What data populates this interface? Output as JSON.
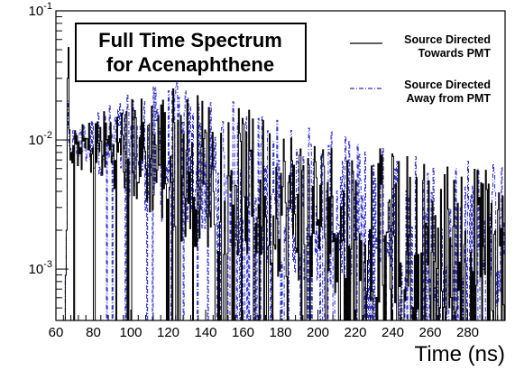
{
  "chart_data": {
    "type": "line",
    "title_lines": [
      "Full Time Spectrum",
      "for Acenaphthene"
    ],
    "xlabel": "Time (ns)",
    "ylabel": "",
    "xlim": [
      60,
      300
    ],
    "ylim": [
      0.0004,
      0.1
    ],
    "yscale": "log",
    "grid": false,
    "legend_position": "top-right",
    "x_ticks": [
      "60",
      "80",
      "100",
      "120",
      "140",
      "160",
      "180",
      "200",
      "220",
      "240",
      "260",
      "280"
    ],
    "y_ticks": [
      {
        "base": "10",
        "exp": "-1",
        "value": 0.1
      },
      {
        "base": "10",
        "exp": "-2",
        "value": 0.01
      },
      {
        "base": "10",
        "exp": "-3",
        "value": 0.001
      }
    ],
    "series": [
      {
        "name_lines": [
          "Source Directed",
          "Towards PMT"
        ],
        "color": "#000000",
        "style": "solid",
        "x": [
          64.5,
          65.5,
          66,
          66.5,
          67,
          67.5,
          68,
          70,
          75,
          80,
          85,
          90,
          100,
          110,
          120,
          130,
          140,
          150,
          160,
          170,
          180,
          190,
          200,
          210,
          220,
          230,
          240,
          250,
          260,
          270,
          280,
          290,
          300
        ],
        "y": [
          0.0004,
          0.002,
          0.03,
          0.052,
          0.012,
          0.007,
          0.008,
          0.0085,
          0.0088,
          0.009,
          0.0092,
          0.0091,
          0.0085,
          0.0078,
          0.0071,
          0.0063,
          0.0056,
          0.005,
          0.0044,
          0.0039,
          0.0035,
          0.0031,
          0.0028,
          0.0026,
          0.0024,
          0.0022,
          0.0021,
          0.002,
          0.0019,
          0.0018,
          0.0017,
          0.0017,
          0.0016
        ]
      },
      {
        "name_lines": [
          "Source Directed",
          "Away from PMT"
        ],
        "color": "#2a2acc",
        "style": "dash-dot",
        "x": [
          64.5,
          65.5,
          66,
          66.5,
          67,
          68,
          70,
          75,
          80,
          85,
          90,
          100,
          110,
          120,
          130,
          140,
          150,
          160,
          170,
          180,
          190,
          200,
          210,
          220,
          230,
          240,
          250,
          260,
          270,
          280,
          290,
          300
        ],
        "y": [
          0.0004,
          0.002,
          0.012,
          0.02,
          0.009,
          0.0082,
          0.0088,
          0.0092,
          0.0095,
          0.0098,
          0.0097,
          0.009,
          0.0083,
          0.0075,
          0.0067,
          0.006,
          0.0054,
          0.0048,
          0.0042,
          0.0038,
          0.0034,
          0.0031,
          0.0028,
          0.0026,
          0.0024,
          0.0023,
          0.0022,
          0.0021,
          0.002,
          0.0019,
          0.0018,
          0.0018
        ]
      }
    ]
  }
}
